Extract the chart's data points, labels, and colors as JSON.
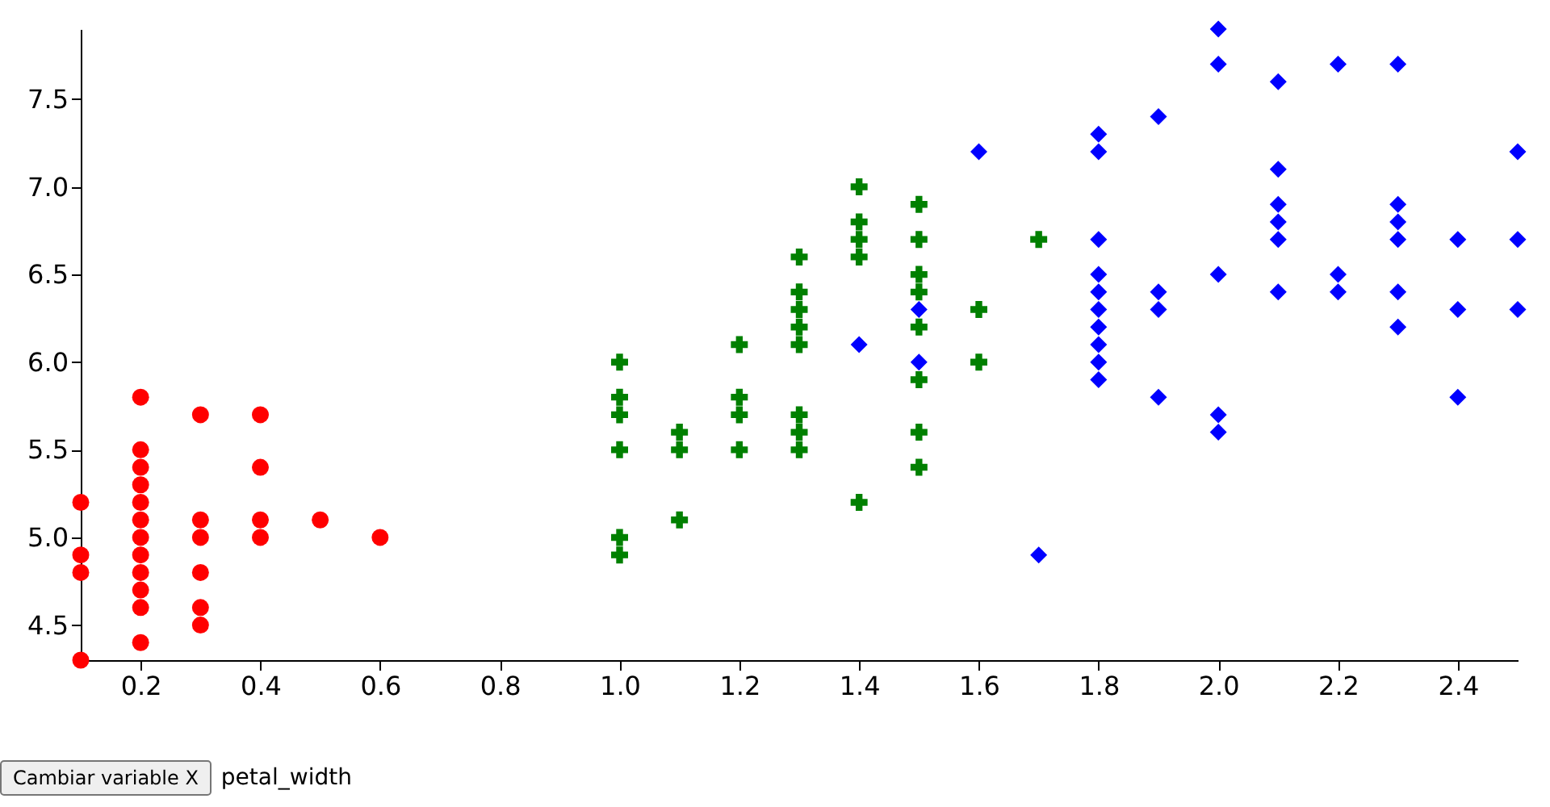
{
  "chart_data": {
    "type": "scatter",
    "xlim": [
      0.1,
      2.5
    ],
    "ylim": [
      4.3,
      7.9
    ],
    "xticks": [
      0.2,
      0.4,
      0.6,
      0.8,
      {
        "value": 1,
        "label": "1.0"
      },
      1.2,
      1.4,
      1.6,
      1.8,
      {
        "value": 2,
        "label": "2.0"
      },
      2.2,
      2.4
    ],
    "yticks": [
      4.5,
      {
        "value": 5,
        "label": "5.0"
      },
      5.5,
      {
        "value": 6,
        "label": "6.0"
      },
      6.5,
      {
        "value": 7,
        "label": "7.0"
      },
      7.5
    ],
    "grid": false,
    "annotations": [
      "Cambiar variable X",
      "petal_width"
    ],
    "series": [
      {
        "color": "#ff0000",
        "marker": "circle",
        "x": [
          0.1,
          0.1,
          0.1,
          0.1,
          0.2,
          0.2,
          0.2,
          0.2,
          0.2,
          0.2,
          0.2,
          0.2,
          0.2,
          0.2,
          0.2,
          0.2,
          0.3,
          0.3,
          0.3,
          0.3,
          0.3,
          0.3,
          0.4,
          0.4,
          0.4,
          0.4,
          0.5,
          0.6
        ],
        "values": [
          4.3,
          4.8,
          4.9,
          5.2,
          4.4,
          4.6,
          4.7,
          4.8,
          4.9,
          5.0,
          5.1,
          5.2,
          5.3,
          5.4,
          5.5,
          5.8,
          4.5,
          4.6,
          4.8,
          5.0,
          5.1,
          5.7,
          5.0,
          5.1,
          5.4,
          5.7,
          5.1,
          5.0
        ]
      },
      {
        "color": "#008000",
        "marker": "cross",
        "x": [
          1.0,
          1.0,
          1.0,
          1.0,
          1.0,
          1.0,
          1.1,
          1.1,
          1.1,
          1.2,
          1.2,
          1.2,
          1.2,
          1.3,
          1.3,
          1.3,
          1.3,
          1.3,
          1.3,
          1.3,
          1.3,
          1.4,
          1.4,
          1.4,
          1.4,
          1.4,
          1.5,
          1.5,
          1.5,
          1.5,
          1.5,
          1.5,
          1.5,
          1.5,
          1.6,
          1.6,
          1.7
        ],
        "values": [
          4.9,
          5.0,
          5.5,
          5.7,
          5.8,
          6.0,
          5.1,
          5.5,
          5.6,
          5.5,
          5.7,
          5.8,
          6.1,
          5.5,
          5.6,
          5.7,
          6.1,
          6.2,
          6.3,
          6.4,
          6.6,
          5.2,
          6.6,
          6.7,
          6.8,
          7.0,
          5.4,
          5.6,
          5.9,
          6.2,
          6.4,
          6.5,
          6.7,
          6.9,
          6.0,
          6.3,
          6.7
        ]
      },
      {
        "color": "#0000ff",
        "marker": "diamond",
        "x": [
          1.4,
          1.5,
          1.5,
          1.6,
          1.7,
          1.8,
          1.8,
          1.8,
          1.8,
          1.8,
          1.8,
          1.8,
          1.8,
          1.8,
          1.8,
          1.9,
          1.9,
          1.9,
          1.9,
          2.0,
          2.0,
          2.0,
          2.0,
          2.0,
          2.1,
          2.1,
          2.1,
          2.1,
          2.1,
          2.1,
          2.2,
          2.2,
          2.2,
          2.3,
          2.3,
          2.3,
          2.3,
          2.3,
          2.3,
          2.4,
          2.4,
          2.4,
          2.5,
          2.5,
          2.5
        ],
        "values": [
          6.1,
          6.0,
          6.3,
          7.2,
          4.9,
          5.9,
          6.0,
          6.1,
          6.2,
          6.3,
          6.4,
          6.5,
          6.7,
          7.2,
          7.3,
          5.8,
          6.3,
          6.4,
          7.4,
          5.6,
          5.7,
          6.5,
          7.7,
          7.9,
          6.4,
          6.7,
          6.8,
          6.9,
          7.1,
          7.6,
          6.4,
          6.5,
          7.7,
          6.2,
          6.4,
          6.7,
          6.8,
          6.9,
          7.7,
          5.8,
          6.3,
          6.7,
          6.3,
          6.7,
          7.2
        ]
      }
    ]
  }
}
